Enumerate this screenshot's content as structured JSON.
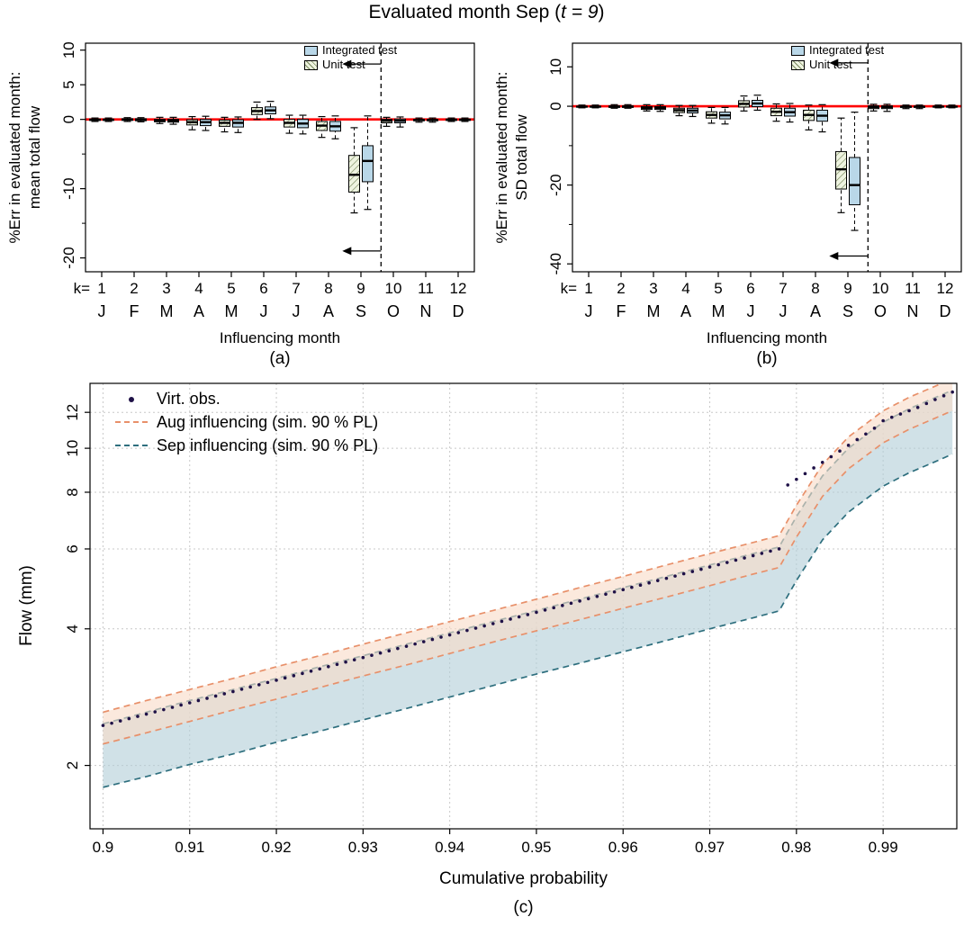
{
  "title": {
    "text_prefix": "Evaluated month Sep (",
    "text_italic": "t = 9",
    "text_suffix": ")"
  },
  "colors": {
    "integrated_fill": "#b9d7e8",
    "unit_fill": "#eef3e0",
    "unit_hatch": "#7a8a5f",
    "ref_line": "#ff0000",
    "obs_point": "#1f1147",
    "aug_line": "#e8906a",
    "aug_fill": "#f8dcc8",
    "sep_line": "#2e6f7e",
    "sep_fill": "#b3cfd9"
  },
  "panels": {
    "a": {
      "ylabel_line1": "%Err in evaluated month:",
      "ylabel_line2": "mean total flow",
      "xlabel": "Influencing month",
      "caption": "(a)",
      "legend": {
        "integrated": "Integrated test",
        "unit": "Unit test"
      }
    },
    "b": {
      "ylabel_line1": "%Err in evaluated month:",
      "ylabel_line2": "SD total flow",
      "xlabel": "Influencing month",
      "caption": "(b)",
      "legend": {
        "integrated": "Integrated test",
        "unit": "Unit test"
      }
    },
    "c": {
      "ylabel": "Flow (mm)",
      "xlabel": "Cumulative probability",
      "caption": "(c)",
      "legend": {
        "obs": "Virt. obs.",
        "aug": "Aug influencing (sim. 90 % PL)",
        "sep": "Sep influencing (sim. 90 % PL)"
      }
    }
  },
  "chart_data": [
    {
      "id": "a",
      "type": "boxplot",
      "ylabel": "%Err in evaluated month: mean total flow",
      "xlabel": "Influencing month",
      "k_label": "k=",
      "categories": [
        1,
        2,
        3,
        4,
        5,
        6,
        7,
        8,
        9,
        10,
        11,
        12
      ],
      "month_letters": [
        "J",
        "F",
        "M",
        "A",
        "M",
        "J",
        "J",
        "A",
        "S",
        "O",
        "N",
        "D"
      ],
      "ylim": [
        -22,
        11
      ],
      "yticks_labeled": [
        10,
        5,
        0,
        -10,
        -20
      ],
      "yticks_minor": [
        -5,
        -15
      ],
      "ref_line_y": 0,
      "dashed_line_x": 9.62,
      "arrow_y_top": 8,
      "arrow_y_bottom": -19,
      "series": [
        {
          "name": "Integrated test",
          "style": "integrated",
          "boxes": [
            [
              -0.3,
              -0.15,
              -0.05,
              0.05,
              0.2
            ],
            [
              -0.35,
              -0.2,
              -0.05,
              0.1,
              0.25
            ],
            [
              -0.7,
              -0.4,
              -0.2,
              0,
              0.3
            ],
            [
              -1.6,
              -0.9,
              -0.4,
              0,
              0.45
            ],
            [
              -1.9,
              -1.1,
              -0.5,
              -0.05,
              0.35
            ],
            [
              0.1,
              0.8,
              1.3,
              1.8,
              2.6
            ],
            [
              -2.1,
              -1.2,
              -0.6,
              0,
              0.6
            ],
            [
              -2.8,
              -1.7,
              -1.0,
              -0.3,
              0.5
            ],
            [
              -13.0,
              -9.0,
              -6.0,
              -3.8,
              0.5
            ],
            [
              -1.1,
              -0.5,
              -0.2,
              0.05,
              0.35
            ],
            [
              -0.4,
              -0.2,
              -0.1,
              0,
              0.2
            ],
            [
              -0.3,
              -0.15,
              -0.05,
              0.05,
              0.2
            ]
          ]
        },
        {
          "name": "Unit test",
          "style": "unit",
          "boxes": [
            [
              -0.3,
              -0.15,
              -0.05,
              0.05,
              0.2
            ],
            [
              -0.3,
              -0.15,
              0,
              0.1,
              0.25
            ],
            [
              -0.6,
              -0.35,
              -0.15,
              0,
              0.3
            ],
            [
              -1.5,
              -0.8,
              -0.4,
              -0.05,
              0.4
            ],
            [
              -1.8,
              -1.0,
              -0.5,
              -0.1,
              0.3
            ],
            [
              0,
              0.7,
              1.2,
              1.7,
              2.5
            ],
            [
              -2.0,
              -1.1,
              -0.5,
              0,
              0.6
            ],
            [
              -2.6,
              -1.6,
              -0.9,
              -0.3,
              0.4
            ],
            [
              -13.5,
              -10.5,
              -8.0,
              -5.2,
              -1.2
            ],
            [
              -1.0,
              -0.5,
              -0.2,
              0,
              0.3
            ],
            [
              -0.4,
              -0.2,
              -0.1,
              0,
              0.2
            ],
            [
              -0.3,
              -0.15,
              -0.05,
              0.05,
              0.2
            ]
          ]
        }
      ]
    },
    {
      "id": "b",
      "type": "boxplot",
      "ylabel": "%Err in evaluated month: SD total flow",
      "xlabel": "Influencing month",
      "k_label": "k=",
      "categories": [
        1,
        2,
        3,
        4,
        5,
        6,
        7,
        8,
        9,
        10,
        11,
        12
      ],
      "month_letters": [
        "J",
        "F",
        "M",
        "A",
        "M",
        "J",
        "J",
        "A",
        "S",
        "O",
        "N",
        "D"
      ],
      "ylim": [
        -42,
        16
      ],
      "yticks_labeled": [
        10,
        0,
        -20,
        -40
      ],
      "yticks_minor": [
        -10,
        -30
      ],
      "ref_line_y": 0,
      "dashed_line_x": 9.62,
      "arrow_y_top": 11,
      "arrow_y_bottom": -38,
      "series": [
        {
          "name": "Integrated test",
          "style": "integrated",
          "boxes": [
            [
              -0.4,
              -0.2,
              -0.1,
              0,
              0.3
            ],
            [
              -0.5,
              -0.3,
              -0.1,
              0.1,
              0.4
            ],
            [
              -1.3,
              -0.8,
              -0.4,
              -0.1,
              0.4
            ],
            [
              -2.6,
              -1.7,
              -1.1,
              -0.5,
              0.2
            ],
            [
              -4.5,
              -3.2,
              -2.3,
              -1.5,
              -0.3
            ],
            [
              -1.0,
              -0.1,
              0.7,
              1.5,
              2.8
            ],
            [
              -4.0,
              -2.5,
              -1.5,
              -0.5,
              0.7
            ],
            [
              -6.5,
              -3.8,
              -2.4,
              -1.0,
              0.4
            ],
            [
              -31.5,
              -25,
              -20,
              -13,
              -1.5
            ],
            [
              -1.3,
              -0.6,
              -0.2,
              0.1,
              0.5
            ],
            [
              -0.6,
              -0.3,
              -0.1,
              0,
              0.3
            ],
            [
              -0.4,
              -0.2,
              -0.1,
              0,
              0.3
            ]
          ]
        },
        {
          "name": "Unit test",
          "style": "unit",
          "boxes": [
            [
              -0.4,
              -0.2,
              -0.1,
              0,
              0.3
            ],
            [
              -0.5,
              -0.3,
              -0.1,
              0.1,
              0.4
            ],
            [
              -1.2,
              -0.8,
              -0.4,
              -0.1,
              0.4
            ],
            [
              -2.4,
              -1.6,
              -1.0,
              -0.5,
              0.2
            ],
            [
              -4.3,
              -3.0,
              -2.2,
              -1.4,
              -0.3
            ],
            [
              -1.2,
              -0.2,
              0.6,
              1.4,
              2.6
            ],
            [
              -3.8,
              -2.4,
              -1.4,
              -0.5,
              0.6
            ],
            [
              -6.0,
              -3.6,
              -2.2,
              -1.0,
              0.3
            ],
            [
              -27,
              -21,
              -16,
              -11.5,
              -3
            ],
            [
              -1.2,
              -0.6,
              -0.2,
              0.1,
              0.5
            ],
            [
              -0.6,
              -0.3,
              -0.1,
              0,
              0.3
            ],
            [
              -0.4,
              -0.2,
              -0.1,
              0,
              0.3
            ]
          ]
        }
      ]
    },
    {
      "id": "c",
      "type": "line",
      "ylabel": "Flow (mm)",
      "xlabel": "Cumulative probability",
      "xlim": [
        0.8985,
        0.9985
      ],
      "ylim_log": [
        1.45,
        13.9
      ],
      "xticks": [
        0.9,
        0.91,
        0.92,
        0.93,
        0.94,
        0.95,
        0.96,
        0.97,
        0.98,
        0.99
      ],
      "yticks": [
        2,
        4,
        6,
        8,
        10,
        12
      ],
      "obs": {
        "name": "Virt. obs.",
        "x_start": 0.9,
        "x_step": 0.001,
        "values": [
          2.45,
          2.478,
          2.507,
          2.536,
          2.565,
          2.595,
          2.625,
          2.655,
          2.686,
          2.717,
          2.748,
          2.78,
          2.812,
          2.844,
          2.877,
          2.91,
          2.944,
          2.978,
          3.012,
          3.047,
          3.082,
          3.118,
          3.154,
          3.19,
          3.227,
          3.264,
          3.302,
          3.34,
          3.379,
          3.418,
          3.457,
          3.497,
          3.537,
          3.578,
          3.62,
          3.661,
          3.704,
          3.747,
          3.79,
          3.834,
          3.878,
          3.923,
          3.968,
          4.014,
          4.06,
          4.107,
          4.155,
          4.203,
          4.251,
          4.3,
          4.35,
          4.4,
          4.451,
          4.503,
          4.555,
          4.607,
          4.661,
          4.715,
          4.769,
          4.824,
          4.88,
          4.936,
          4.993,
          5.051,
          5.11,
          5.169,
          5.228,
          5.289,
          5.35,
          5.412,
          5.475,
          5.538,
          5.602,
          5.667,
          5.732,
          5.799,
          5.866,
          5.934,
          6.002,
          8.3,
          8.54,
          8.79,
          9.05,
          9.31,
          9.58,
          9.86,
          10.15,
          10.45,
          10.75,
          11.07,
          11.5,
          11.7,
          11.9,
          12.1,
          12.3,
          12.55,
          12.8,
          13.05,
          13.3
        ]
      },
      "bands": [
        {
          "id": "aug",
          "name": "Aug influencing (sim. 90 % PL)",
          "line_key": "aug_line",
          "fill_key": "aug_fill",
          "x": [
            0.9,
            0.905,
            0.91,
            0.915,
            0.92,
            0.925,
            0.93,
            0.935,
            0.94,
            0.945,
            0.95,
            0.955,
            0.96,
            0.965,
            0.97,
            0.975,
            0.978,
            0.98,
            0.983,
            0.986,
            0.99,
            0.993,
            0.996,
            0.998
          ],
          "upper": [
            2.62,
            2.78,
            2.94,
            3.11,
            3.3,
            3.49,
            3.7,
            3.92,
            4.15,
            4.39,
            4.65,
            4.93,
            5.22,
            5.53,
            5.86,
            6.2,
            6.42,
            7.49,
            9.2,
            10.59,
            12.09,
            12.95,
            13.7,
            14.23
          ],
          "lower": [
            2.23,
            2.36,
            2.5,
            2.65,
            2.8,
            2.97,
            3.15,
            3.33,
            3.53,
            3.74,
            3.96,
            4.19,
            4.44,
            4.7,
            4.98,
            5.28,
            5.46,
            6.37,
            7.83,
            9.01,
            10.28,
            11.01,
            11.65,
            12.1
          ]
        },
        {
          "id": "sep",
          "name": "Sep influencing (sim. 90 % PL)",
          "line_key": "sep_line",
          "fill_key": "sep_fill",
          "x": [
            0.9,
            0.905,
            0.91,
            0.915,
            0.92,
            0.925,
            0.93,
            0.935,
            0.94,
            0.945,
            0.95,
            0.955,
            0.96,
            0.965,
            0.97,
            0.975,
            0.978,
            0.98,
            0.983,
            0.986,
            0.99,
            0.993,
            0.996,
            0.998
          ],
          "upper": [
            2.47,
            2.62,
            2.78,
            2.94,
            3.11,
            3.3,
            3.49,
            3.7,
            3.92,
            4.15,
            4.39,
            4.65,
            4.93,
            5.22,
            5.53,
            5.86,
            6.06,
            7.07,
            8.69,
            10.0,
            11.41,
            12.22,
            12.93,
            13.43
          ],
          "lower": [
            1.79,
            1.89,
            2.01,
            2.12,
            2.25,
            2.38,
            2.52,
            2.67,
            2.83,
            3.0,
            3.18,
            3.36,
            3.56,
            3.77,
            4.0,
            4.23,
            4.38,
            5.11,
            6.28,
            7.23,
            8.25,
            8.83,
            9.34,
            9.71
          ]
        }
      ]
    }
  ]
}
